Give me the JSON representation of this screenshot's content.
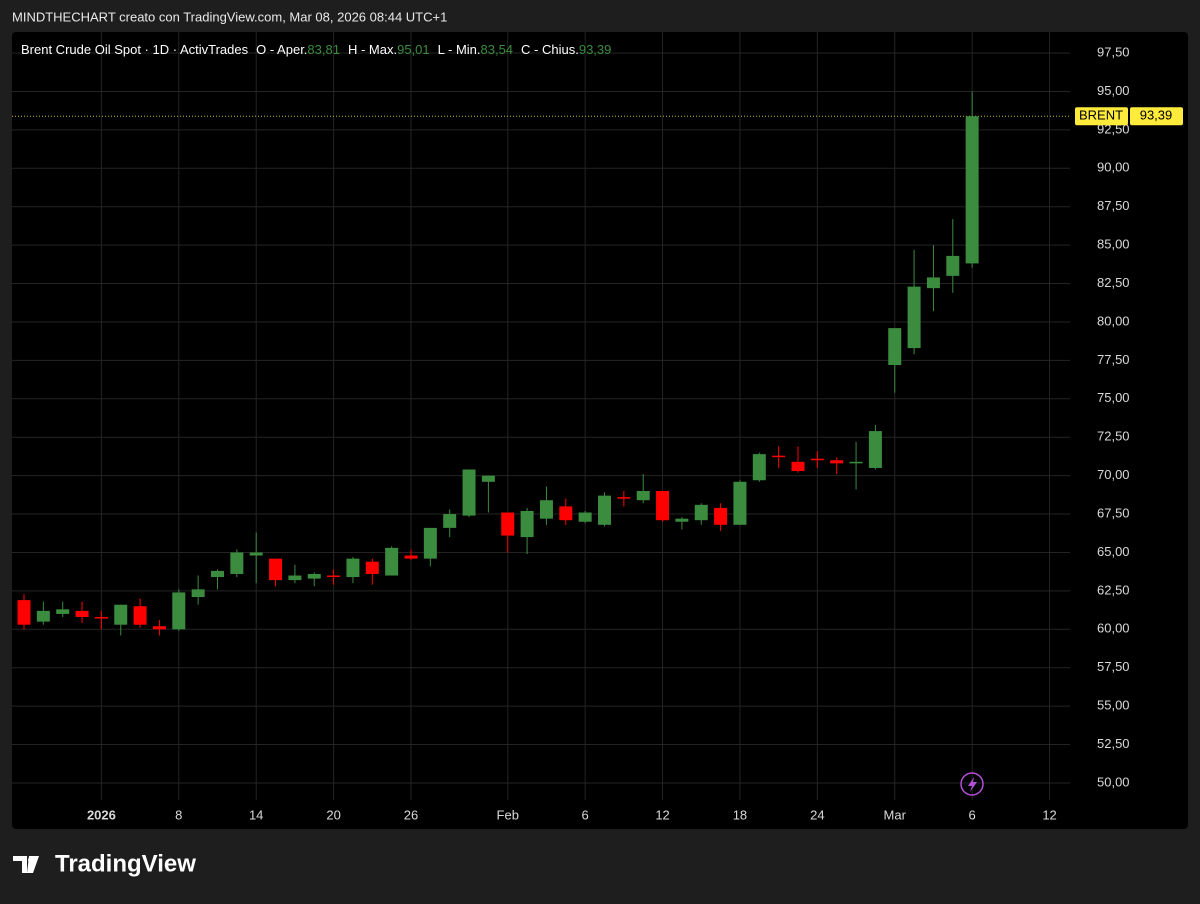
{
  "chart_data": {
    "type": "candlestick",
    "attribution": "MINDTHECHART creato con TradingView.com, Mar 08, 2026 08:44 UTC+1",
    "title": "Brent Crude Oil Spot · 1D · ActivTrades",
    "ohlc_labels": [
      {
        "name": "O - Aper.",
        "value": "83,81"
      },
      {
        "name": "H - Max.",
        "value": "95,01"
      },
      {
        "name": "L - Min.",
        "value": "83,54"
      },
      {
        "name": "C - Chius.",
        "value": "93,39"
      }
    ],
    "brand": "TradingView",
    "up_color": "#3b8c3f",
    "down_color": "#ff0000",
    "categories": [
      null,
      null,
      null,
      null,
      "2026",
      null,
      null,
      null,
      "8",
      null,
      null,
      null,
      "14",
      null,
      null,
      null,
      "20",
      null,
      null,
      null,
      "26",
      null,
      null,
      null,
      null,
      "Feb",
      null,
      null,
      null,
      "6",
      null,
      null,
      null,
      "12",
      null,
      null,
      null,
      "18",
      null,
      null,
      null,
      "24",
      null,
      null,
      null,
      "Mar",
      null,
      null,
      null,
      "6",
      null,
      null,
      null,
      "12"
    ],
    "open": [
      61.9,
      60.5,
      61.0,
      61.2,
      60.8,
      60.3,
      61.5,
      60.2,
      60.0,
      62.1,
      63.4,
      63.6,
      64.8,
      64.6,
      63.2,
      63.3,
      63.5,
      63.4,
      64.4,
      63.5,
      64.8,
      64.6,
      66.6,
      67.4,
      69.6,
      67.6,
      66.0,
      67.2,
      68.0,
      67.0,
      66.8,
      68.6,
      68.4,
      69.0,
      67.0,
      67.1,
      67.9,
      66.8,
      69.7,
      71.3,
      70.9,
      71.1,
      71.0,
      70.8,
      70.5,
      77.2,
      78.3,
      82.2,
      83.0,
      83.81,
      null,
      null,
      null,
      null
    ],
    "high": [
      62.3,
      61.8,
      61.8,
      61.8,
      61.2,
      61.6,
      62.0,
      60.6,
      62.6,
      63.5,
      63.9,
      65.2,
      66.3,
      64.6,
      64.2,
      63.7,
      63.9,
      64.7,
      64.6,
      65.4,
      65.2,
      66.6,
      67.8,
      70.4,
      70.0,
      67.6,
      67.9,
      69.3,
      68.5,
      67.7,
      68.9,
      69.0,
      70.1,
      69.0,
      67.3,
      68.2,
      68.2,
      69.7,
      71.5,
      71.9,
      71.9,
      71.6,
      71.2,
      72.2,
      73.3,
      79.6,
      84.7,
      85.0,
      86.7,
      95.01,
      null,
      null,
      null,
      null
    ],
    "low": [
      60.0,
      60.3,
      60.8,
      60.4,
      60.0,
      59.6,
      60.1,
      59.6,
      59.9,
      61.6,
      62.6,
      63.4,
      63.0,
      62.8,
      63.0,
      62.8,
      62.9,
      63.0,
      62.9,
      63.5,
      64.5,
      64.1,
      66.0,
      67.3,
      67.6,
      65.0,
      64.9,
      66.8,
      66.8,
      66.9,
      66.7,
      68.0,
      68.2,
      67.0,
      66.5,
      66.8,
      66.4,
      66.8,
      69.6,
      70.5,
      70.2,
      70.5,
      70.1,
      69.1,
      70.4,
      75.4,
      77.9,
      80.7,
      81.9,
      83.54,
      null,
      null,
      null,
      null
    ],
    "close": [
      60.3,
      61.2,
      61.3,
      60.8,
      60.7,
      61.6,
      60.3,
      60.0,
      62.4,
      62.6,
      63.8,
      65.0,
      65.0,
      63.2,
      63.5,
      63.6,
      63.4,
      64.6,
      63.6,
      65.3,
      64.6,
      66.6,
      67.5,
      70.4,
      70.0,
      66.1,
      67.7,
      68.4,
      67.1,
      67.6,
      68.7,
      68.5,
      69.0,
      67.1,
      67.2,
      68.1,
      66.8,
      69.6,
      71.4,
      71.2,
      70.3,
      71.0,
      70.8,
      70.9,
      72.9,
      79.6,
      82.3,
      82.9,
      84.3,
      93.39,
      null,
      null,
      null,
      null
    ],
    "ylim": [
      47.07,
      98.87
    ],
    "yticks": [
      {
        "value": 50,
        "label": "50,00"
      },
      {
        "value": 52.5,
        "label": "52,50"
      },
      {
        "value": 55,
        "label": "55,00"
      },
      {
        "value": 57.5,
        "label": "57,50"
      },
      {
        "value": 60,
        "label": "60,00"
      },
      {
        "value": 62.5,
        "label": "62,50"
      },
      {
        "value": 65,
        "label": "65,00"
      },
      {
        "value": 67.5,
        "label": "67,50"
      },
      {
        "value": 70,
        "label": "70,00"
      },
      {
        "value": 72.5,
        "label": "72,50"
      },
      {
        "value": 75,
        "label": "75,00"
      },
      {
        "value": 77.5,
        "label": "77,50"
      },
      {
        "value": 80,
        "label": "80,00"
      },
      {
        "value": 82.5,
        "label": "82,50"
      },
      {
        "value": 85,
        "label": "85,00"
      },
      {
        "value": 87.5,
        "label": "87,50"
      },
      {
        "value": 90,
        "label": "90,00"
      },
      {
        "value": 92.5,
        "label": "92,50"
      },
      {
        "value": 95,
        "label": "95,00"
      },
      {
        "value": 97.5,
        "label": "97,50"
      }
    ],
    "grid": true,
    "last_price": {
      "tag": "BRENT",
      "value": 93.39,
      "label": "93,39"
    }
  }
}
